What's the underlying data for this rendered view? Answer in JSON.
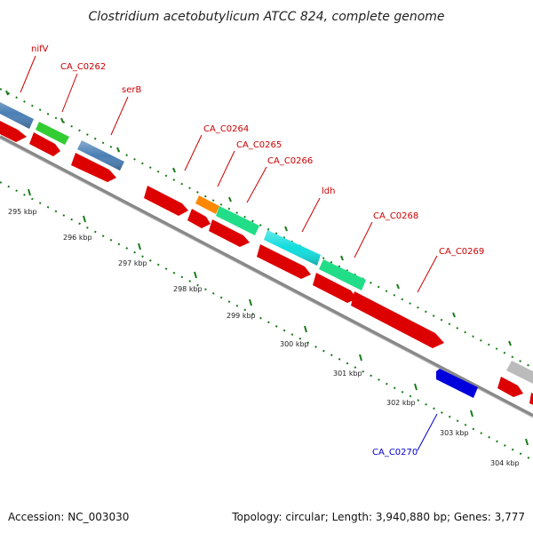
{
  "title": "Clostridium acetobutylicum ATCC 824, complete genome",
  "footer": {
    "accession": "Accession: NC_003030",
    "topology": "Topology: circular; Length: 3,940,880 bp; Genes: 3,777"
  },
  "colors": {
    "forward_gene": "#dd0000",
    "backbone": "#888888",
    "tick_dots": "#1a7a1a",
    "label_red": "#cc0000",
    "label_blue": "#0000cc"
  },
  "genes": [
    {
      "name": "nifV",
      "strand": "+",
      "color": "#4a7fb5"
    },
    {
      "name": "CA_C0262",
      "strand": "+",
      "color": "#33cc33"
    },
    {
      "name": "serB",
      "strand": "+",
      "color": "#4a7fb5"
    },
    {
      "name": "CA_C0264",
      "strand": "+",
      "color": "#dd0000"
    },
    {
      "name": "CA_C0265",
      "strand": "+",
      "color": "#ff8800"
    },
    {
      "name": "CA_C0266",
      "strand": "+",
      "color": "#22dd88"
    },
    {
      "name": "ldh",
      "strand": "+",
      "color": "#11dddd"
    },
    {
      "name": "CA_C0268",
      "strand": "+",
      "color": "#22dd88"
    },
    {
      "name": "CA_C0269",
      "strand": "+",
      "color": "#dd0000"
    },
    {
      "name": "CA_C0270",
      "strand": "-",
      "color": "#0000dd"
    }
  ],
  "kbp_labels": [
    "295 kbp",
    "296 kbp",
    "297 kbp",
    "298 kbp",
    "299 kbp",
    "300 kbp",
    "301 kbp",
    "302 kbp",
    "303 kbp",
    "304 kbp"
  ]
}
